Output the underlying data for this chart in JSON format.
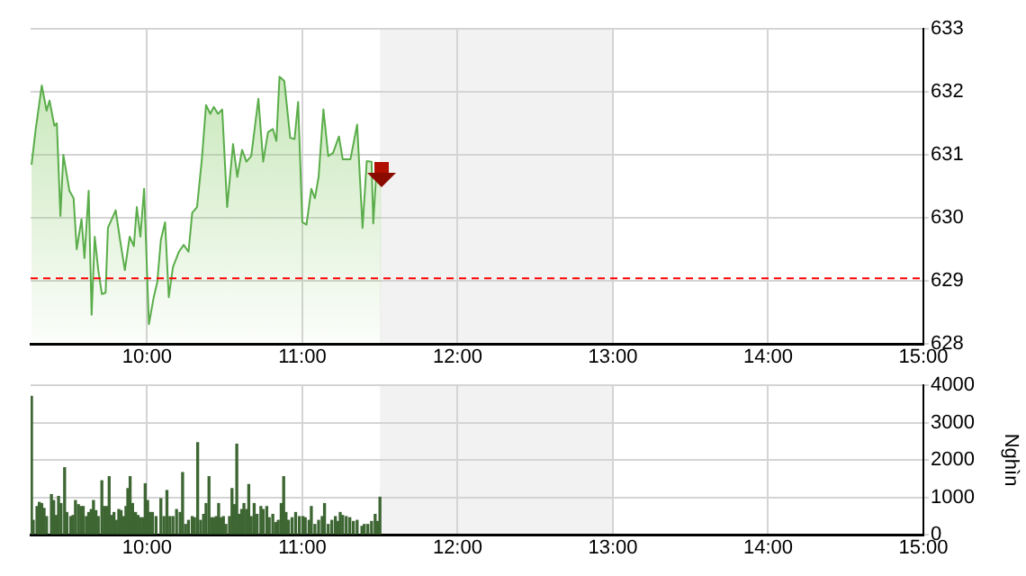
{
  "chart_data": [
    {
      "type": "area",
      "color": "#5aad4a",
      "x": [
        9.256,
        9.283,
        9.322,
        9.353,
        9.372,
        9.403,
        9.419,
        9.442,
        9.461,
        9.5,
        9.527,
        9.547,
        9.578,
        9.597,
        9.624,
        9.643,
        9.663,
        9.686,
        9.709,
        9.733,
        9.748,
        9.798,
        9.826,
        9.857,
        9.888,
        9.915,
        9.934,
        9.957,
        9.981,
        10.012,
        10.043,
        10.066,
        10.089,
        10.116,
        10.14,
        10.167,
        10.205,
        10.236,
        10.267,
        10.291,
        10.322,
        10.353,
        10.38,
        10.407,
        10.43,
        10.457,
        10.484,
        10.516,
        10.554,
        10.581,
        10.612,
        10.64,
        10.671,
        10.717,
        10.748,
        10.779,
        10.81,
        10.833,
        10.853,
        10.884,
        10.922,
        10.95,
        10.973,
        11.0,
        11.027,
        11.058,
        11.081,
        11.105,
        11.136,
        11.167,
        11.198,
        11.236,
        11.26,
        11.31,
        11.353,
        11.388,
        11.415,
        11.446,
        11.457,
        11.477,
        11.508
      ],
      "values": [
        630.84,
        631.41,
        632.1,
        631.7,
        631.86,
        631.46,
        631.5,
        630.03,
        631.0,
        630.43,
        630.31,
        629.5,
        629.98,
        629.36,
        630.43,
        628.46,
        629.7,
        629.17,
        628.79,
        628.81,
        629.84,
        630.12,
        629.65,
        629.17,
        629.7,
        629.55,
        630.17,
        629.7,
        630.46,
        628.31,
        628.74,
        628.98,
        629.65,
        629.93,
        628.74,
        629.22,
        629.46,
        629.57,
        629.46,
        630.08,
        630.17,
        630.93,
        631.79,
        631.65,
        631.76,
        631.65,
        631.72,
        630.17,
        631.17,
        630.65,
        631.08,
        630.89,
        630.98,
        631.89,
        630.89,
        631.36,
        631.41,
        631.22,
        632.24,
        632.17,
        631.27,
        631.25,
        631.84,
        629.93,
        629.89,
        630.46,
        630.31,
        630.65,
        631.72,
        630.98,
        631.03,
        631.29,
        630.93,
        630.93,
        631.48,
        629.84,
        630.9,
        630.89,
        629.91,
        630.74,
        630.7
      ],
      "marker": "none",
      "xlim": [
        9.25,
        15
      ],
      "xticks": [
        {
          "value": 10,
          "label": "10:00"
        },
        {
          "value": 11,
          "label": "11:00"
        },
        {
          "value": 12,
          "label": "12:00"
        },
        {
          "value": 13,
          "label": "13:00"
        },
        {
          "value": 14,
          "label": "14:00"
        },
        {
          "value": 15,
          "label": "15:00"
        }
      ],
      "ylim": [
        628,
        633
      ],
      "yticks": [
        628,
        629,
        630,
        631,
        632,
        633
      ],
      "grid": true,
      "ref_lines": [
        {
          "axis": "y",
          "value": 629.04,
          "color": "#ff0000",
          "line_style": "dashed"
        }
      ],
      "bands": [
        {
          "axis": "x",
          "from": 11.5,
          "to": 13,
          "color": "#f2f2f2"
        }
      ]
    },
    {
      "type": "bar",
      "color": "#3d6633",
      "ylabel": "Nghìn",
      "x": [
        9.256,
        9.267,
        9.291,
        9.306,
        9.322,
        9.337,
        9.353,
        9.384,
        9.399,
        9.415,
        9.43,
        9.446,
        9.469,
        9.484,
        9.508,
        9.523,
        9.539,
        9.558,
        9.574,
        9.589,
        9.609,
        9.624,
        9.64,
        9.655,
        9.671,
        9.686,
        9.709,
        9.725,
        9.74,
        9.756,
        9.771,
        9.787,
        9.802,
        9.818,
        9.833,
        9.849,
        9.864,
        9.876,
        9.891,
        9.907,
        9.926,
        9.942,
        9.957,
        9.973,
        9.988,
        10.004,
        10.019,
        10.035,
        10.058,
        10.089,
        10.109,
        10.128,
        10.147,
        10.167,
        10.19,
        10.213,
        10.229,
        10.248,
        10.267,
        10.291,
        10.306,
        10.326,
        10.345,
        10.364,
        10.38,
        10.399,
        10.415,
        10.43,
        10.446,
        10.461,
        10.477,
        10.492,
        10.508,
        10.531,
        10.547,
        10.562,
        10.578,
        10.593,
        10.609,
        10.624,
        10.64,
        10.655,
        10.671,
        10.69,
        10.709,
        10.733,
        10.748,
        10.771,
        10.787,
        10.81,
        10.829,
        10.845,
        10.864,
        10.88,
        10.895,
        10.911,
        10.934,
        10.957,
        10.981,
        11.004,
        11.019,
        11.043,
        11.058,
        11.081,
        11.105,
        11.128,
        11.143,
        11.167,
        11.19,
        11.213,
        11.229,
        11.244,
        11.26,
        11.283,
        11.306,
        11.329,
        11.353,
        11.384,
        11.399,
        11.422,
        11.446,
        11.469,
        11.484,
        11.5
      ],
      "values": [
        3700,
        380,
        750,
        860,
        830,
        700,
        480,
        1070,
        910,
        510,
        1020,
        830,
        1790,
        590,
        480,
        510,
        910,
        800,
        750,
        750,
        480,
        590,
        670,
        910,
        640,
        480,
        1440,
        750,
        750,
        1550,
        510,
        590,
        380,
        670,
        640,
        480,
        750,
        1230,
        1550,
        830,
        590,
        510,
        450,
        450,
        1360,
        910,
        590,
        590,
        480,
        960,
        480,
        1180,
        480,
        480,
        670,
        590,
        1660,
        270,
        380,
        480,
        450,
        2460,
        380,
        540,
        830,
        1550,
        450,
        450,
        480,
        830,
        450,
        480,
        270,
        480,
        1230,
        800,
        2420,
        540,
        670,
        830,
        670,
        1340,
        480,
        830,
        540,
        750,
        670,
        750,
        450,
        540,
        320,
        380,
        830,
        1550,
        590,
        380,
        450,
        590,
        480,
        480,
        450,
        380,
        750,
        270,
        380,
        480,
        830,
        270,
        380,
        480,
        350,
        590,
        510,
        480,
        450,
        350,
        380,
        220,
        270,
        270,
        350,
        540,
        350,
        1000
      ],
      "xlim": [
        9.25,
        15
      ],
      "xticks": [
        {
          "value": 10,
          "label": "10:00"
        },
        {
          "value": 11,
          "label": "11:00"
        },
        {
          "value": 12,
          "label": "12:00"
        },
        {
          "value": 13,
          "label": "13:00"
        },
        {
          "value": 14,
          "label": "14:00"
        },
        {
          "value": 15,
          "label": "15:00"
        }
      ],
      "ylim": [
        0,
        4000
      ],
      "yticks": [
        0,
        1000,
        2000,
        3000,
        4000
      ],
      "grid": true,
      "bands": [
        {
          "axis": "x",
          "from": 11.5,
          "to": 13,
          "color": "#f2f2f2"
        }
      ]
    }
  ]
}
